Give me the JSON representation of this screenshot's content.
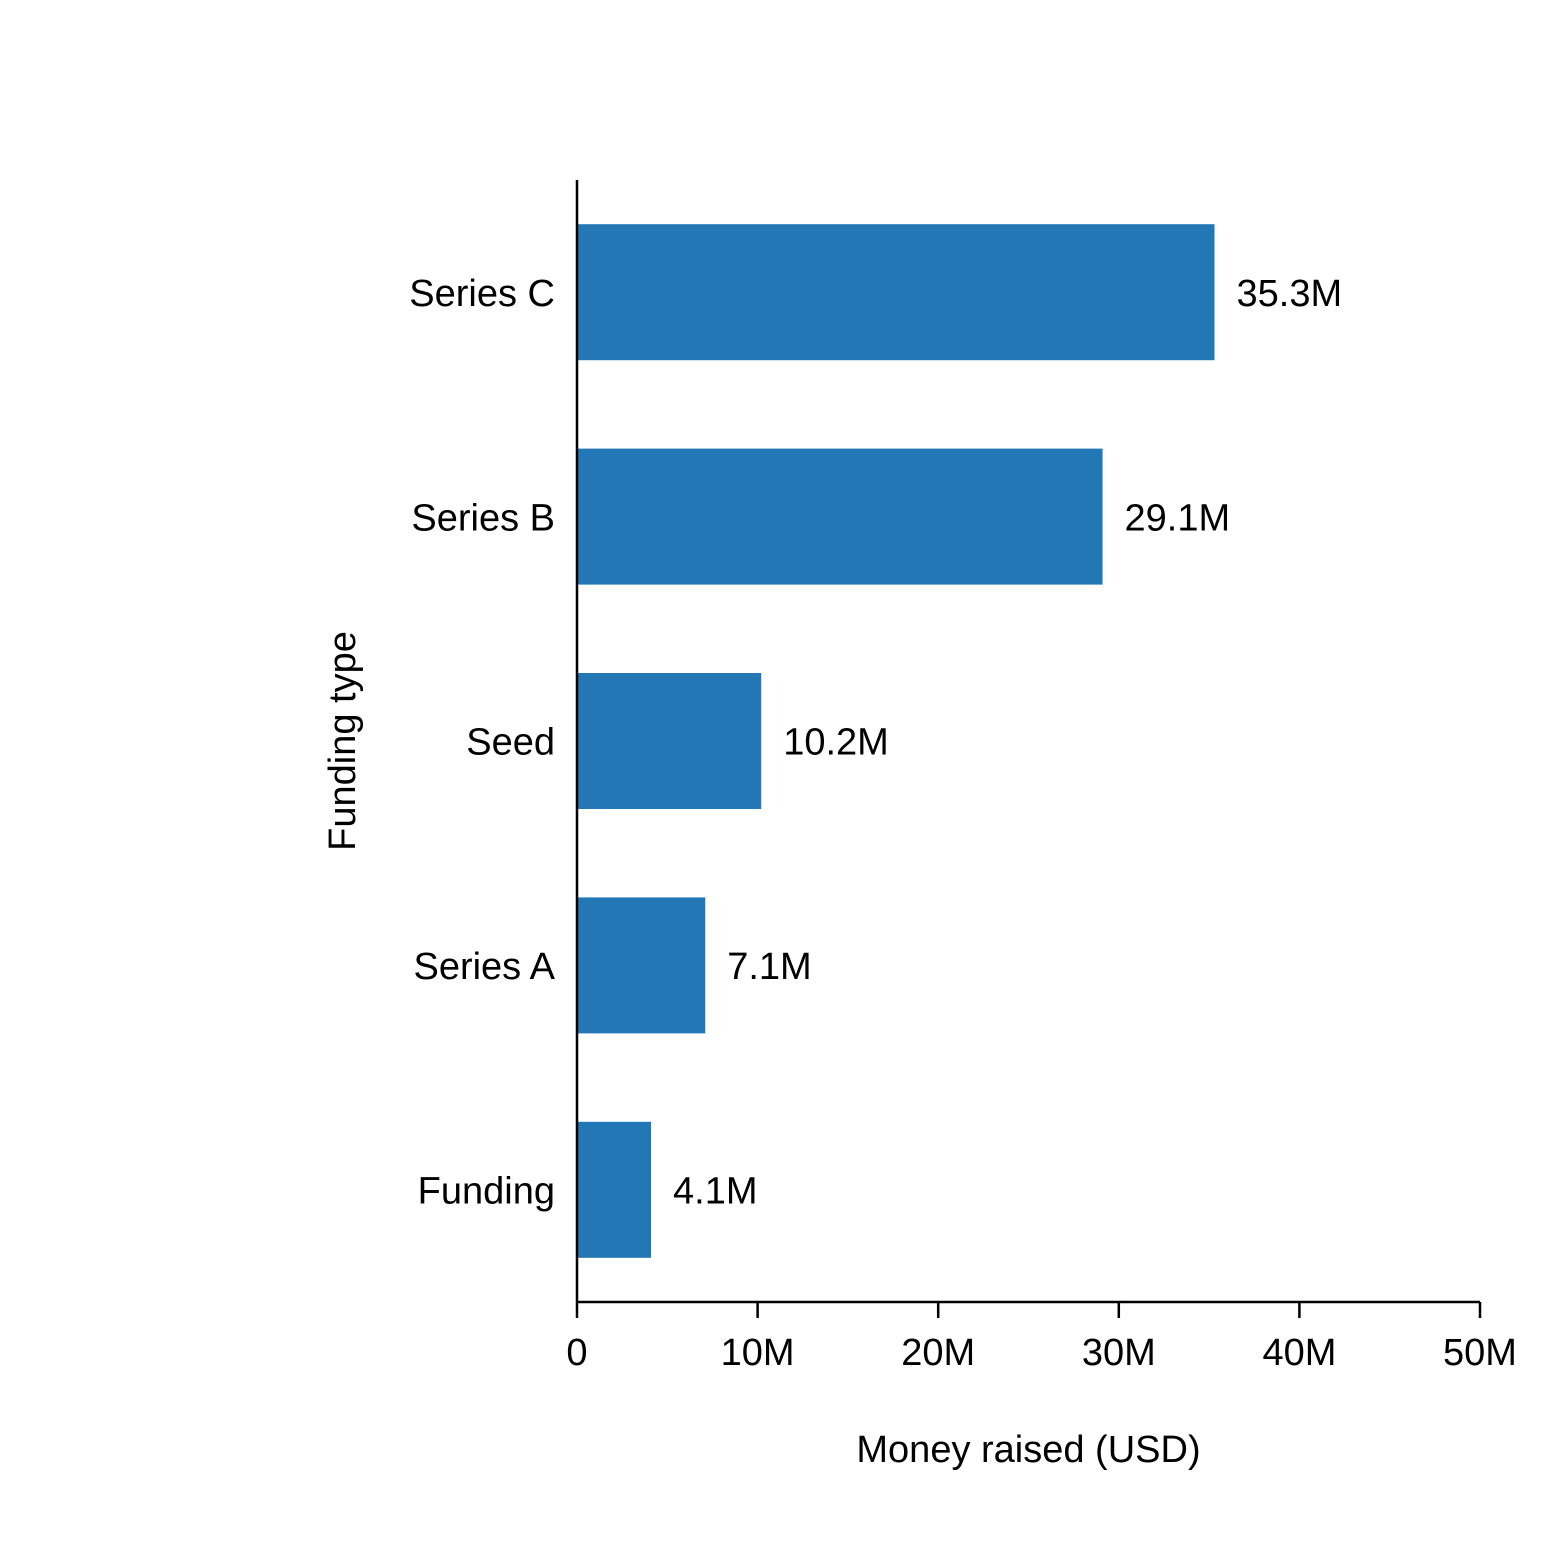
{
  "chart_data": {
    "type": "bar",
    "orientation": "horizontal",
    "categories": [
      "Funding",
      "Series A",
      "Seed",
      "Series B",
      "Series C"
    ],
    "values": [
      4.1,
      7.1,
      10.2,
      29.1,
      35.3
    ],
    "value_labels": [
      "4.1M",
      "7.1M",
      "10.2M",
      "29.1M",
      "35.3M"
    ],
    "units": "M USD",
    "xlabel": "Money raised (USD)",
    "ylabel": "Funding type",
    "xlim": [
      0,
      50
    ],
    "xticks": [
      0,
      10,
      20,
      30,
      40,
      50
    ],
    "xtick_labels": [
      "0",
      "10M",
      "20M",
      "30M",
      "40M",
      "50M"
    ],
    "grid": false,
    "bar_color": "#2277b4"
  }
}
